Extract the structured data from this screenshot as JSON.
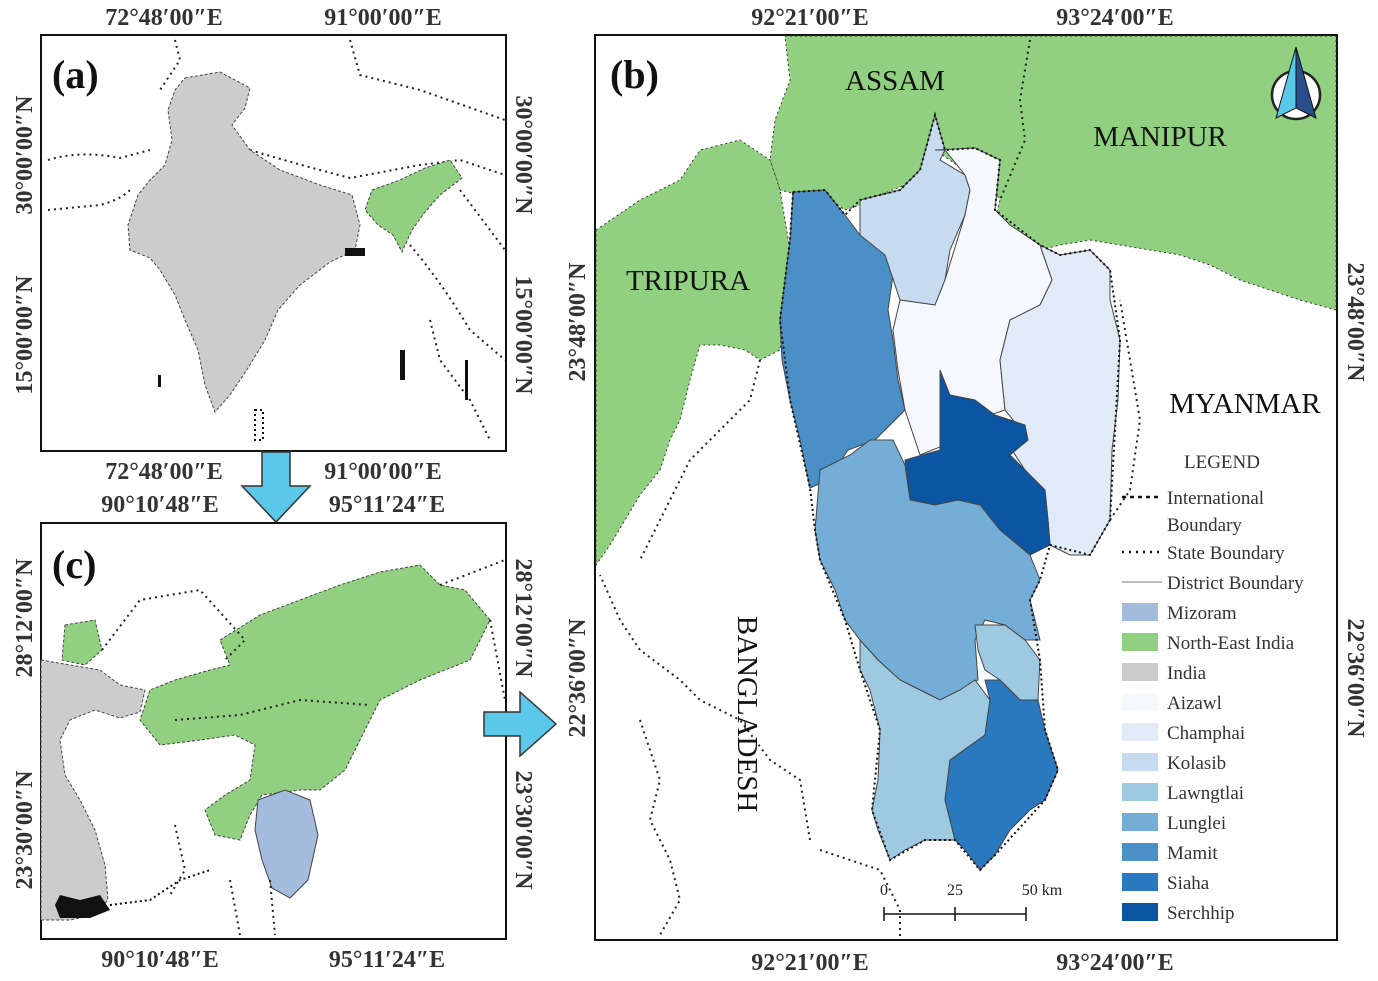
{
  "panel_a": {
    "label": "(a)",
    "top_x": [
      "72°48′00″E",
      "91°00′00″E"
    ],
    "bottom_x": [
      "72°48′00″E",
      "91°00′00″E"
    ],
    "left_y": [
      "30°00′00″N",
      "15°00′00″N"
    ],
    "right_y": [
      "30°00′00″N",
      "15°00′00″N"
    ]
  },
  "panel_c": {
    "label": "(c)",
    "top_x": [
      "90°10′48″E",
      "95°11′24″E"
    ],
    "bottom_x": [
      "90°10′48″E",
      "95°11′24″E"
    ],
    "left_y": [
      "28°12′00″N",
      "23°30′00″N"
    ],
    "right_y": [
      "28°12′00″N",
      "23°30′00″N"
    ]
  },
  "panel_b": {
    "label": "(b)",
    "top_x": [
      "92°21′00″E",
      "93°24′00″E"
    ],
    "bottom_x": [
      "92°21′00″E",
      "93°24′00″E"
    ],
    "left_y": [
      "23°48′00″N",
      "22°36′00″N"
    ],
    "right_y": [
      "23°48′00″N",
      "22°36′00″N"
    ],
    "regions": {
      "assam": "ASSAM",
      "manipur": "MANIPUR",
      "tripura": "TRIPURA",
      "myanmar": "MYANMAR",
      "bangladesh": "BANGLADESH"
    },
    "scale_bar": {
      "ticks": [
        "0",
        "25",
        "50 km"
      ]
    }
  },
  "legend": {
    "title": "LEGEND",
    "international_boundary": [
      "International",
      "Boundary"
    ],
    "state_boundary": "State Boundary",
    "district_boundary": "District Boundary",
    "items": [
      {
        "label": "Mizoram",
        "color": "#a3bbdd"
      },
      {
        "label": "North-East India",
        "color": "#90d080"
      },
      {
        "label": "India",
        "color": "#cccccc"
      },
      {
        "label": "Aizawl",
        "color": "#f5f9fd"
      },
      {
        "label": "Champhai",
        "color": "#e0ebf7"
      },
      {
        "label": "Kolasib",
        "color": "#c6dbef"
      },
      {
        "label": "Lawngtlai",
        "color": "#9ecae1"
      },
      {
        "label": "Lunglei",
        "color": "#74aed6"
      },
      {
        "label": "Mamit",
        "color": "#4a90c6"
      },
      {
        "label": "Siaha",
        "color": "#2a78bd"
      },
      {
        "label": "Serchhip",
        "color": "#0b55a2"
      }
    ]
  },
  "colors": {
    "northeast": "#90d080",
    "india": "#cccccc",
    "mizoram": "#a3bbdd",
    "arrow": "#5bc8ea"
  },
  "icons": [
    "north-arrow-icon",
    "down-arrow-icon",
    "right-arrow-icon"
  ]
}
